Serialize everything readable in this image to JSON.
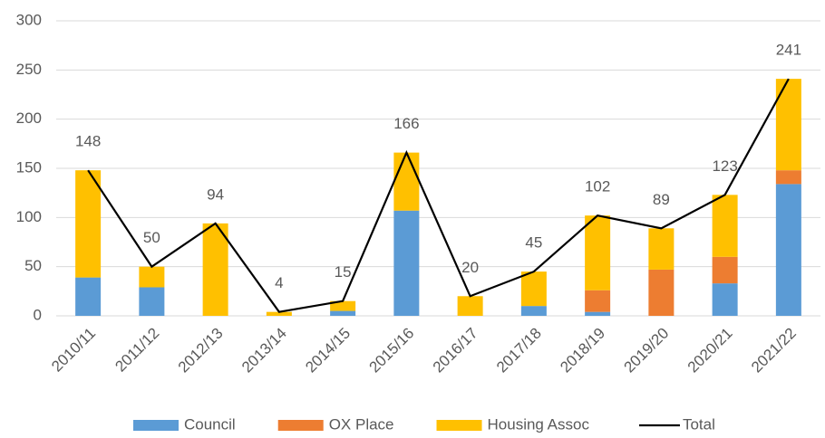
{
  "chart_data": {
    "type": "stacked-bar-line",
    "categories": [
      "2010/11",
      "2011/12",
      "2012/13",
      "2013/14",
      "2014/15",
      "2015/16",
      "2016/17",
      "2017/18",
      "2018/19",
      "2019/20",
      "2020/21",
      "2021/22"
    ],
    "series": [
      {
        "name": "Council",
        "color": "#5b9bd5",
        "values": [
          39,
          29,
          0,
          0,
          5,
          107,
          0,
          10,
          4,
          0,
          33,
          134
        ]
      },
      {
        "name": "OX Place",
        "color": "#ed7d31",
        "values": [
          0,
          0,
          0,
          0,
          0,
          0,
          0,
          0,
          22,
          47,
          27,
          14
        ]
      },
      {
        "name": "Housing Assoc",
        "color": "#ffc000",
        "values": [
          109,
          21,
          94,
          4,
          10,
          59,
          20,
          35,
          76,
          42,
          63,
          93
        ]
      },
      {
        "name": "Total",
        "color": "#000000",
        "kind": "line",
        "values": [
          148,
          50,
          94,
          4,
          15,
          166,
          20,
          45,
          102,
          89,
          123,
          241
        ]
      }
    ],
    "ylim": [
      0,
      300
    ],
    "yticks": [
      0,
      50,
      100,
      150,
      200,
      250,
      300
    ],
    "grid": true,
    "legend": "bottom"
  }
}
